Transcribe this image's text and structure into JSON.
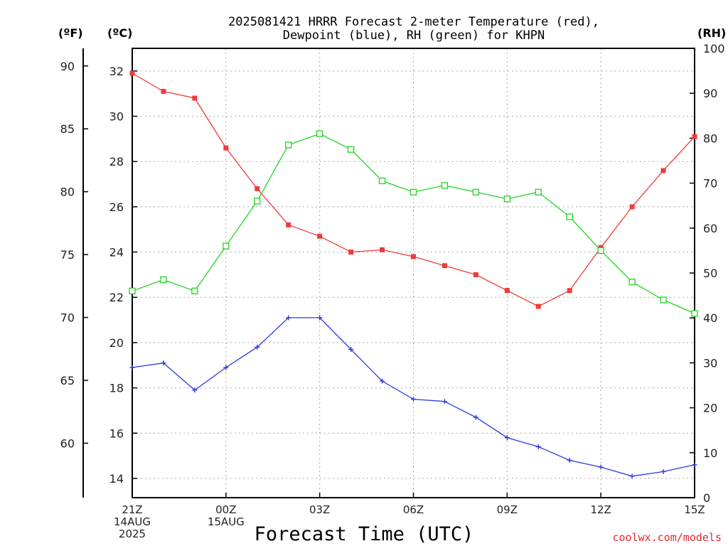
{
  "chart_data": {
    "type": "line",
    "title_line1": "2025081421 HRRR Forecast 2-meter Temperature (red),",
    "title_line2": "Dewpoint (blue), RH (green) for KHPN",
    "xlabel": "Forecast Time (UTC)",
    "credit": "coolwx.com/models",
    "units": {
      "fahrenheit": "(ºF)",
      "celsius": "(ºC)",
      "rh": "(RH)"
    },
    "x": [
      0,
      1,
      2,
      3,
      4,
      5,
      6,
      7,
      8,
      9,
      10,
      11,
      12,
      13,
      14,
      15,
      16,
      17,
      18
    ],
    "x_ticks": [
      {
        "x": 0,
        "lines": [
          "21Z",
          "14AUG",
          "2025"
        ]
      },
      {
        "x": 3,
        "lines": [
          "00Z",
          "15AUG"
        ]
      },
      {
        "x": 6,
        "lines": [
          "03Z"
        ]
      },
      {
        "x": 9,
        "lines": [
          "06Z"
        ]
      },
      {
        "x": 12,
        "lines": [
          "09Z"
        ]
      },
      {
        "x": 15,
        "lines": [
          "12Z"
        ]
      },
      {
        "x": 18,
        "lines": [
          "15Z"
        ]
      }
    ],
    "celsius_ticks": [
      14,
      16,
      18,
      20,
      22,
      24,
      26,
      28,
      30,
      32
    ],
    "fahrenheit_ticks": [
      60,
      65,
      70,
      75,
      80,
      85,
      90
    ],
    "rh_ticks": [
      0,
      10,
      20,
      30,
      40,
      50,
      60,
      70,
      80,
      90,
      100
    ],
    "ylim_celsius": [
      13.15,
      33.0
    ],
    "ylim_rh": [
      0,
      100
    ],
    "grid": true,
    "series": [
      {
        "name": "Temperature",
        "axis": "celsius",
        "color": "#f03a3a",
        "marker": "filled-square",
        "values": [
          31.9,
          31.1,
          30.8,
          28.6,
          26.8,
          25.2,
          24.7,
          24.0,
          24.1,
          23.8,
          23.4,
          23.0,
          22.3,
          21.6,
          22.3,
          24.2,
          26.0,
          27.6,
          29.1
        ]
      },
      {
        "name": "Dewpoint",
        "axis": "celsius",
        "color": "#2c3cdc",
        "marker": "plus",
        "values": [
          18.9,
          19.1,
          17.9,
          18.9,
          19.8,
          21.1,
          21.1,
          19.7,
          18.3,
          17.5,
          17.4,
          16.7,
          15.8,
          15.4,
          14.8,
          14.5,
          14.1,
          14.3,
          14.6
        ]
      },
      {
        "name": "RH",
        "axis": "rh",
        "color": "#22d322",
        "marker": "open-square",
        "values": [
          46,
          48.5,
          46,
          56,
          66,
          78.5,
          81,
          77.5,
          70.5,
          68,
          69.5,
          68,
          66.5,
          68,
          62.5,
          55,
          48,
          44,
          41
        ]
      }
    ]
  }
}
